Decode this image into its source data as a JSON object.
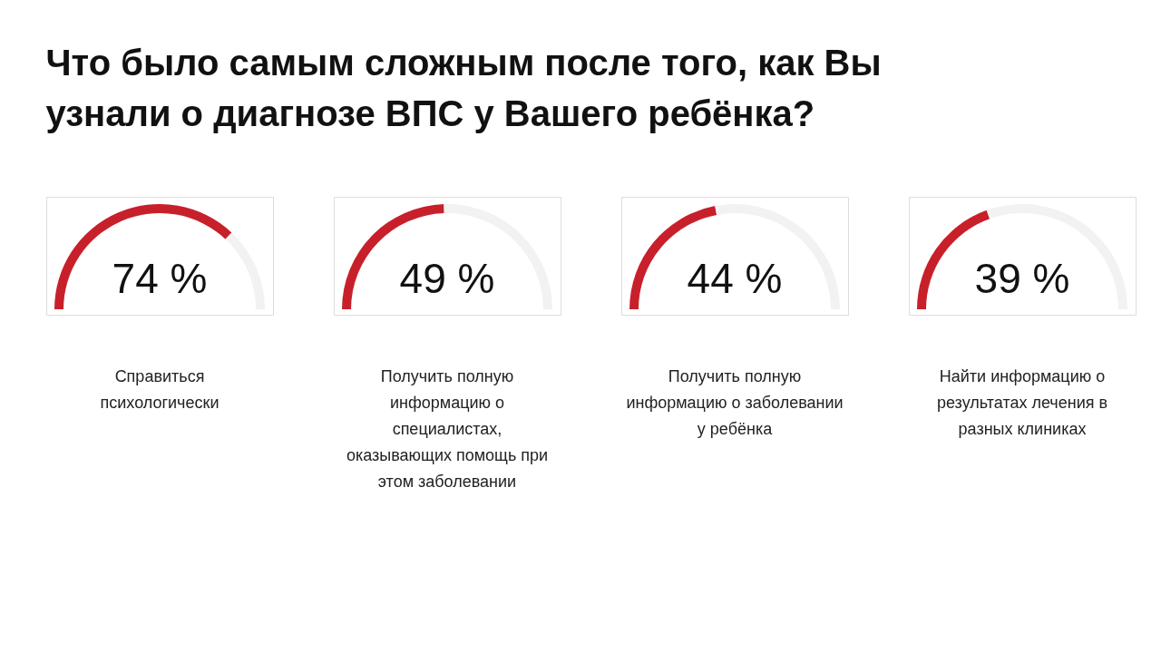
{
  "chart_data": [
    {
      "type": "other",
      "title": "Что было самым сложным после того, как Вы узнали о диагнозе ВПС у Вашего ребёнка?"
    },
    {
      "type": "donut",
      "title": "Справиться психологически",
      "categories": [
        null,
        null
      ],
      "values": [
        74,
        26
      ],
      "colors": [
        "#c8202a",
        "#f2f2f2"
      ],
      "value_labels": [
        "74 %",
        null
      ],
      "legend": false
    },
    {
      "type": "donut",
      "title": "Получить полную информацию о специалистах, оказывающих помощь при этом заболевании",
      "categories": [
        null,
        null
      ],
      "values": [
        49,
        51
      ],
      "colors": [
        "#c8202a",
        "#f2f2f2"
      ],
      "value_labels": [
        "49 %",
        null
      ],
      "legend": false
    },
    {
      "type": "donut",
      "title": "Получить полную информацию о заболевании у ребёнка",
      "categories": [
        null,
        null
      ],
      "values": [
        44,
        56
      ],
      "colors": [
        "#c8202a",
        "#f2f2f2"
      ],
      "value_labels": [
        "44 %",
        null
      ],
      "legend": false
    },
    {
      "type": "donut",
      "title": "Найти информацию о результатах лечения в разных клиниках",
      "categories": [
        null,
        null
      ],
      "values": [
        39,
        61
      ],
      "colors": [
        "#c8202a",
        "#f2f2f2"
      ],
      "value_labels": [
        "39 %",
        null
      ],
      "legend": false
    }
  ]
}
